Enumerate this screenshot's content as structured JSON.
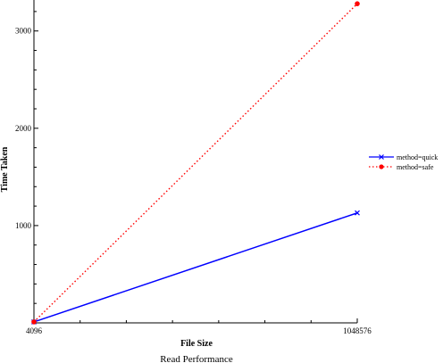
{
  "chart_data": {
    "type": "line",
    "title": "Read Performance",
    "xlabel": "File Size",
    "ylabel": "Time Taken",
    "x": [
      4096,
      1048576
    ],
    "x_tick_labels": [
      "4096",
      "1048576"
    ],
    "ylim": [
      0,
      3300
    ],
    "y_ticks": [
      1000,
      2000,
      3000
    ],
    "grid": false,
    "legend_position": "right",
    "series": [
      {
        "name": "method=quick",
        "values": [
          10,
          1130
        ],
        "color": "#0000ff",
        "line_style": "solid",
        "marker": "x"
      },
      {
        "name": "method=safe",
        "values": [
          10,
          3280
        ],
        "color": "#ff0000",
        "line_style": "dotted",
        "marker": "circle"
      }
    ]
  }
}
